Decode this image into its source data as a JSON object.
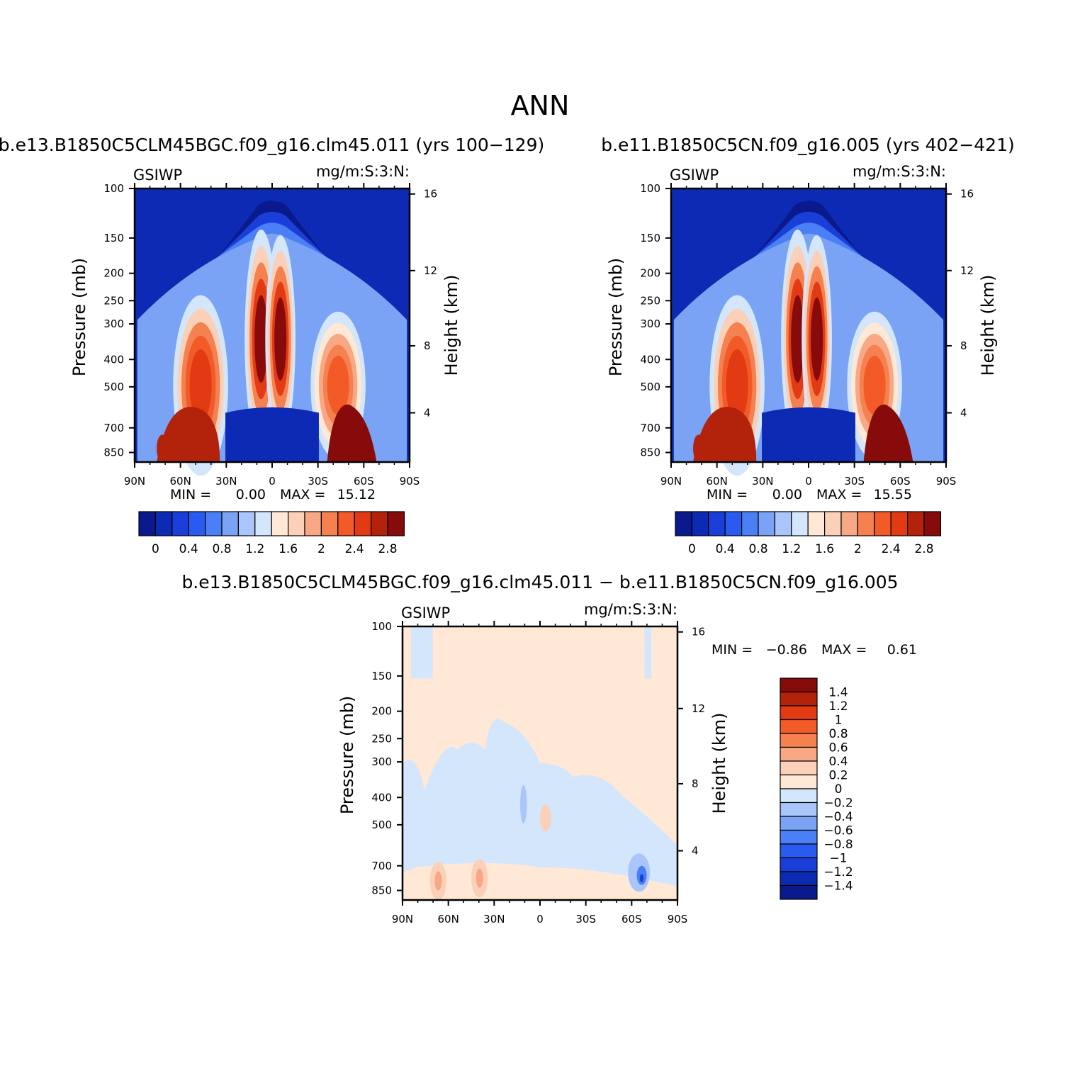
{
  "title": "ANN",
  "chart_data": [
    {
      "type": "heatmap",
      "title": "b.e13.B1850C5CLM45BGC.f09_g16.clm45.011 (yrs 100−129)",
      "left_label": "GSIWP",
      "right_label": "mg/m:S:3:N:",
      "ylabel": "Pressure (mb)",
      "ylabel_right": "Height (km)",
      "x_ticks": [
        "90N",
        "60N",
        "30N",
        "0",
        "30S",
        "60S",
        "90S"
      ],
      "y_ticks": [
        "100",
        "150",
        "200",
        "250",
        "300",
        "400",
        "500",
        "700",
        "850"
      ],
      "y_right_ticks": [
        "16",
        "12",
        "8",
        "4"
      ],
      "min_label": "MIN =",
      "min_value": "0.00",
      "max_label": "MAX =",
      "max_value": "15.12",
      "colorbar_labels": [
        "0",
        "0.4",
        "0.8",
        "1.2",
        "1.6",
        "2",
        "2.4",
        "2.8"
      ]
    },
    {
      "type": "heatmap",
      "title": "b.e11.B1850C5CN.f09_g16.005 (yrs 402−421)",
      "left_label": "GSIWP",
      "right_label": "mg/m:S:3:N:",
      "ylabel": "Pressure (mb)",
      "ylabel_right": "Height (km)",
      "x_ticks": [
        "90N",
        "60N",
        "30N",
        "0",
        "30S",
        "60S",
        "90S"
      ],
      "y_ticks": [
        "100",
        "150",
        "200",
        "250",
        "300",
        "400",
        "500",
        "700",
        "850"
      ],
      "y_right_ticks": [
        "16",
        "12",
        "8",
        "4"
      ],
      "min_label": "MIN =",
      "min_value": "0.00",
      "max_label": "MAX =",
      "max_value": "15.55",
      "colorbar_labels": [
        "0",
        "0.4",
        "0.8",
        "1.2",
        "1.6",
        "2",
        "2.4",
        "2.8"
      ]
    },
    {
      "type": "heatmap",
      "title": "b.e13.B1850C5CLM45BGC.f09_g16.clm45.011 − b.e11.B1850C5CN.f09_g16.005",
      "left_label": "GSIWP",
      "right_label": "mg/m:S:3:N:",
      "ylabel": "Pressure (mb)",
      "ylabel_right": "Height (km)",
      "x_ticks": [
        "90N",
        "60N",
        "30N",
        "0",
        "30S",
        "60S",
        "90S"
      ],
      "y_ticks": [
        "100",
        "150",
        "200",
        "250",
        "300",
        "400",
        "500",
        "700",
        "850"
      ],
      "y_right_ticks": [
        "16",
        "12",
        "8",
        "4"
      ],
      "min_label": "MIN =",
      "min_value": "−0.86",
      "max_label": "MAX =",
      "max_value": "0.61",
      "colorbar_labels": [
        "1.4",
        "1.2",
        "1",
        "0.8",
        "0.6",
        "0.4",
        "0.2",
        "0",
        "−0.2",
        "−0.4",
        "−0.6",
        "−0.8",
        "−1",
        "−1.2",
        "−1.4"
      ]
    }
  ],
  "colors": {
    "scale": [
      "#0a1a8c",
      "#0d2ab4",
      "#1a3fd9",
      "#2a5bf0",
      "#4a7ff5",
      "#7aa3f5",
      "#a9c5fa",
      "#d4e6fc",
      "#ffe8d6",
      "#fbd0b9",
      "#f8a884",
      "#f58050",
      "#f25a28",
      "#e23a12",
      "#b3220a",
      "#870b0b"
    ],
    "background_field": "#0d2ab4",
    "diff_positive_bg": "#ffe8d6",
    "diff_negative": "#d4e6fc"
  }
}
